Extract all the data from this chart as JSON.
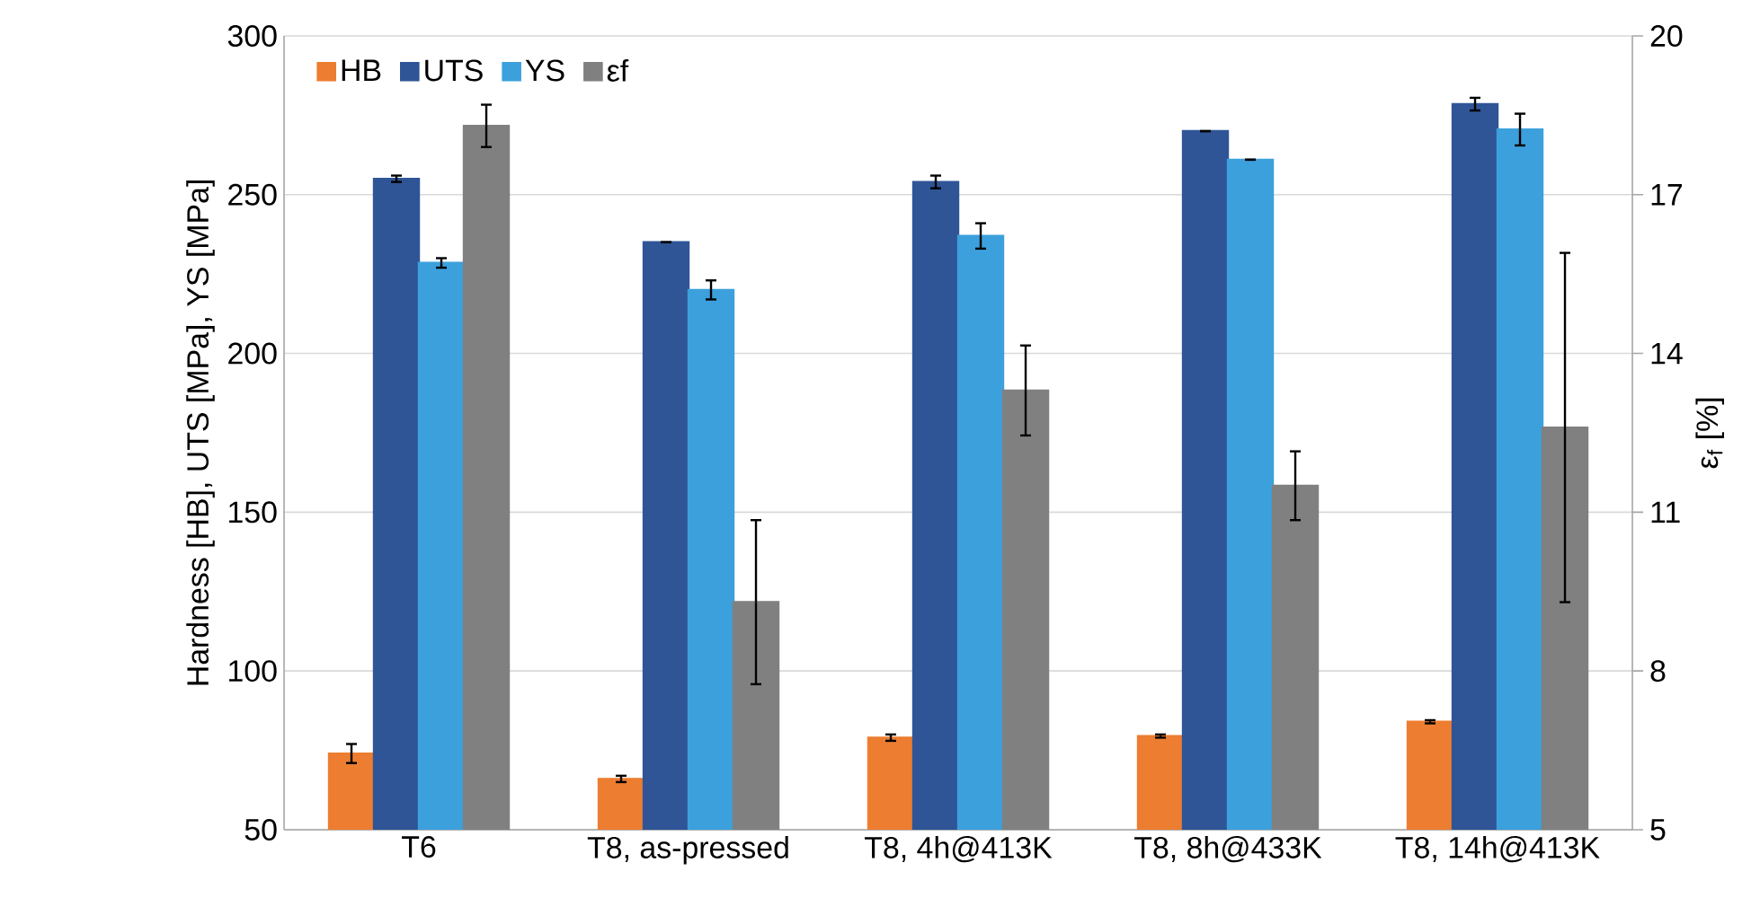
{
  "chart_data": {
    "type": "bar",
    "categories": [
      "T6",
      "T8, as-pressed",
      "T8, 4h@413K",
      "T8, 8h@433K",
      "T8, 14h@413K"
    ],
    "ylabel": "Hardness [HB], UTS [MPa], YS [MPa]",
    "y2label": "ε$_{f}$ [%]",
    "ylim": [
      50,
      300
    ],
    "yticks": [
      50,
      100,
      150,
      200,
      250,
      300
    ],
    "y2lim": [
      5,
      20
    ],
    "y2ticks": [
      5,
      8,
      11,
      14,
      17,
      20
    ],
    "grid": "y",
    "legend": "top left",
    "series": [
      {
        "name": "HB",
        "color": "#ed7d31",
        "values": [
          74,
          66,
          79,
          79.5,
          84
        ],
        "errors": [
          3,
          1,
          1,
          0.5,
          0.5
        ]
      },
      {
        "name": "UTS",
        "color": "#2f5597",
        "values": [
          255,
          235,
          254,
          270,
          278.5
        ],
        "errors": [
          1,
          0,
          2,
          0,
          2
        ]
      },
      {
        "name": "YS",
        "color": "#3ca0dc",
        "values": [
          228.5,
          220,
          237,
          261,
          270.5
        ],
        "errors": [
          1.5,
          3,
          4,
          0,
          5
        ]
      },
      {
        "name": "εf",
        "color": "#808080",
        "axis": "y2",
        "values": [
          18.3,
          9.3,
          13.3,
          11.5,
          12.6
        ],
        "errors": [
          0.4,
          1.55,
          0.85,
          0.65,
          3.3
        ]
      }
    ]
  }
}
